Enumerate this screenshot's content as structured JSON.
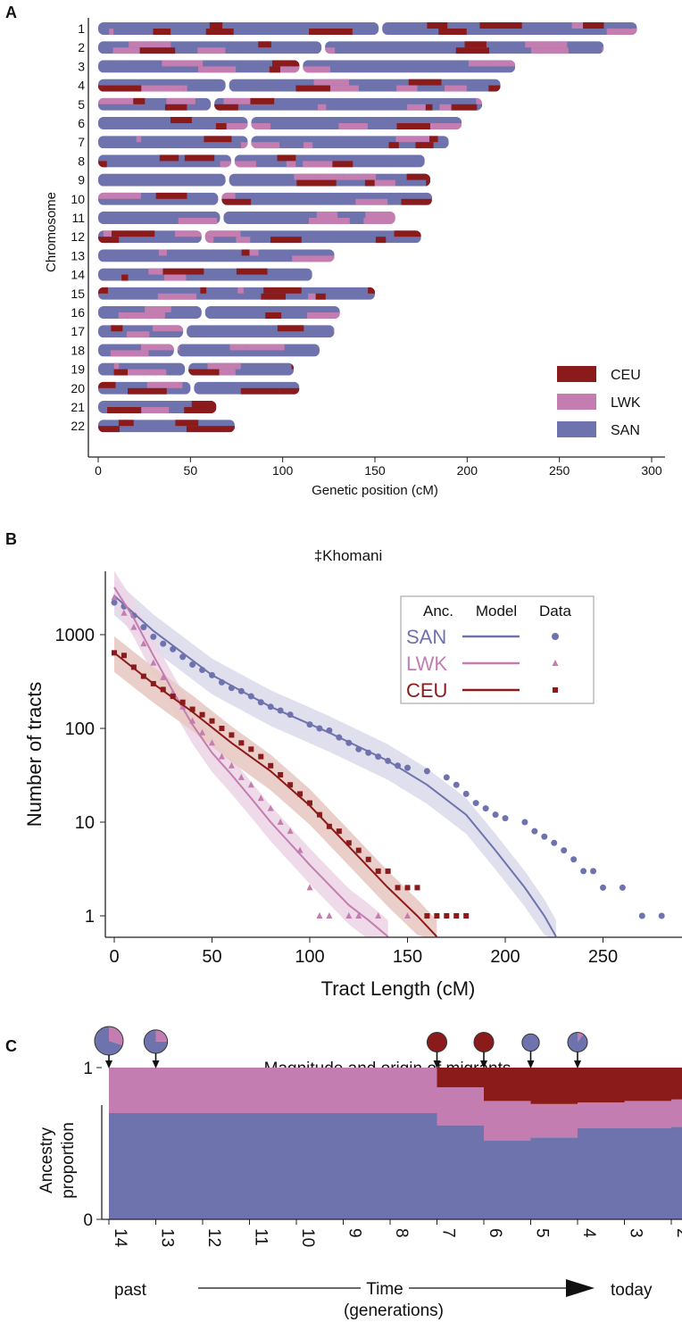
{
  "colors": {
    "CEU": "#8b1a1a",
    "LWK": "#c47db0",
    "SAN": "#6e73ad",
    "SAN_light": "#dcdcec",
    "LWK_light": "#ecd6e6",
    "CEU_light": "#e8c9c4"
  },
  "panels": {
    "A": "A",
    "B": "B",
    "C": "C"
  },
  "chart_data": [
    {
      "type": "chromosome-painting",
      "ylabel": "Chromosome",
      "xlabel": "Genetic position (cM)",
      "xlim": [
        0,
        300
      ],
      "xticks": [
        "0",
        "50",
        "100",
        "150",
        "200",
        "250",
        "300"
      ],
      "legend_position": "bottom-right",
      "legend": [
        {
          "name": "CEU",
          "color": "#8b1a1a"
        },
        {
          "name": "LWK",
          "color": "#c47db0"
        },
        {
          "name": "SAN",
          "color": "#6e73ad"
        }
      ],
      "chromosomes": [
        {
          "id": "1",
          "length": 292,
          "centromere": 153
        },
        {
          "id": "2",
          "length": 274,
          "centromere": 122
        },
        {
          "id": "3",
          "length": 226,
          "centromere": 110
        },
        {
          "id": "4",
          "length": 218,
          "centromere": 70
        },
        {
          "id": "5",
          "length": 208,
          "centromere": 62
        },
        {
          "id": "6",
          "length": 197,
          "centromere": 82
        },
        {
          "id": "7",
          "length": 190,
          "centromere": 82
        },
        {
          "id": "8",
          "length": 177,
          "centromere": 73
        },
        {
          "id": "9",
          "length": 180,
          "centromere": 70
        },
        {
          "id": "10",
          "length": 181,
          "centromere": 66
        },
        {
          "id": "11",
          "length": 161,
          "centromere": 67
        },
        {
          "id": "12",
          "length": 175,
          "centromere": 57
        },
        {
          "id": "13",
          "length": 128,
          "centromere": 0
        },
        {
          "id": "14",
          "length": 116,
          "centromere": 0
        },
        {
          "id": "15",
          "length": 150,
          "centromere": 0
        },
        {
          "id": "16",
          "length": 131,
          "centromere": 57
        },
        {
          "id": "17",
          "length": 128,
          "centromere": 47
        },
        {
          "id": "18",
          "length": 120,
          "centromere": 42
        },
        {
          "id": "19",
          "length": 106,
          "centromere": 48
        },
        {
          "id": "20",
          "length": 109,
          "centromere": 51
        },
        {
          "id": "21",
          "length": 64,
          "centromere": 0
        },
        {
          "id": "22",
          "length": 74,
          "centromere": 0
        }
      ]
    },
    {
      "type": "scatter",
      "title": "‡Khomani",
      "xlabel": "Tract Length (cM)",
      "ylabel": "Number of tracts",
      "xlim": [
        -5,
        285
      ],
      "ylim": [
        0.6,
        3200
      ],
      "yscale": "log",
      "xticks": [
        "0",
        "50",
        "100",
        "150",
        "200",
        "250"
      ],
      "yticks": [
        "1",
        "10",
        "100",
        "1000"
      ],
      "legend_position": "top-right",
      "legend_header": {
        "anc": "Anc.",
        "model": "Model",
        "data": "Data"
      },
      "series": [
        {
          "name": "SAN",
          "marker": "circle",
          "color": "#6e73ad",
          "data": [
            [
              0,
              2200
            ],
            [
              5,
              2000
            ],
            [
              10,
              1600
            ],
            [
              15,
              1200
            ],
            [
              20,
              950
            ],
            [
              25,
              800
            ],
            [
              30,
              700
            ],
            [
              35,
              580
            ],
            [
              40,
              480
            ],
            [
              45,
              420
            ],
            [
              50,
              370
            ],
            [
              55,
              310
            ],
            [
              60,
              270
            ],
            [
              65,
              250
            ],
            [
              70,
              220
            ],
            [
              75,
              190
            ],
            [
              80,
              170
            ],
            [
              85,
              155
            ],
            [
              90,
              140
            ],
            [
              100,
              110
            ],
            [
              105,
              100
            ],
            [
              110,
              95
            ],
            [
              115,
              80
            ],
            [
              120,
              70
            ],
            [
              125,
              60
            ],
            [
              130,
              55
            ],
            [
              135,
              50
            ],
            [
              140,
              45
            ],
            [
              145,
              40
            ],
            [
              150,
              38
            ],
            [
              160,
              35
            ],
            [
              170,
              30
            ],
            [
              175,
              25
            ],
            [
              180,
              20
            ],
            [
              185,
              16
            ],
            [
              190,
              14
            ],
            [
              195,
              12
            ],
            [
              200,
              11
            ],
            [
              210,
              10
            ],
            [
              215,
              8
            ],
            [
              220,
              7
            ],
            [
              225,
              6
            ],
            [
              230,
              5
            ],
            [
              235,
              4
            ],
            [
              240,
              3
            ],
            [
              245,
              3
            ],
            [
              250,
              2
            ],
            [
              260,
              2
            ],
            [
              270,
              1
            ],
            [
              280,
              1
            ]
          ],
          "model": [
            [
              0,
              2600
            ],
            [
              20,
              1100
            ],
            [
              50,
              370
            ],
            [
              80,
              170
            ],
            [
              110,
              90
            ],
            [
              140,
              45
            ],
            [
              160,
              25
            ],
            [
              180,
              12
            ],
            [
              195,
              5
            ],
            [
              210,
              2
            ],
            [
              220,
              1
            ],
            [
              226,
              0.6
            ]
          ]
        },
        {
          "name": "LWK",
          "marker": "triangle",
          "color": "#c47db0",
          "data": [
            [
              0,
              2500
            ],
            [
              5,
              1700
            ],
            [
              10,
              1200
            ],
            [
              15,
              800
            ],
            [
              20,
              500
            ],
            [
              25,
              350
            ],
            [
              30,
              240
            ],
            [
              35,
              170
            ],
            [
              40,
              120
            ],
            [
              45,
              90
            ],
            [
              50,
              70
            ],
            [
              55,
              50
            ],
            [
              60,
              40
            ],
            [
              65,
              30
            ],
            [
              70,
              25
            ],
            [
              75,
              18
            ],
            [
              80,
              14
            ],
            [
              85,
              10
            ],
            [
              90,
              8
            ],
            [
              95,
              5
            ],
            [
              100,
              2
            ],
            [
              105,
              1
            ],
            [
              110,
              1
            ],
            [
              120,
              1
            ],
            [
              125,
              1
            ],
            [
              135,
              1
            ],
            [
              150,
              1
            ]
          ],
          "model": [
            [
              0,
              3200
            ],
            [
              10,
              1500
            ],
            [
              20,
              600
            ],
            [
              30,
              250
            ],
            [
              40,
              110
            ],
            [
              50,
              55
            ],
            [
              60,
              32
            ],
            [
              70,
              18
            ],
            [
              80,
              10
            ],
            [
              100,
              3.5
            ],
            [
              120,
              1.3
            ],
            [
              130,
              0.9
            ],
            [
              140,
              0.6
            ]
          ]
        },
        {
          "name": "CEU",
          "marker": "square",
          "color": "#8b1a1a",
          "data": [
            [
              0,
              640
            ],
            [
              5,
              600
            ],
            [
              10,
              450
            ],
            [
              15,
              360
            ],
            [
              20,
              300
            ],
            [
              25,
              260
            ],
            [
              30,
              220
            ],
            [
              35,
              190
            ],
            [
              40,
              160
            ],
            [
              45,
              140
            ],
            [
              50,
              120
            ],
            [
              55,
              100
            ],
            [
              60,
              85
            ],
            [
              65,
              70
            ],
            [
              70,
              60
            ],
            [
              75,
              50
            ],
            [
              80,
              40
            ],
            [
              85,
              32
            ],
            [
              90,
              25
            ],
            [
              95,
              20
            ],
            [
              100,
              16
            ],
            [
              105,
              12
            ],
            [
              110,
              9
            ],
            [
              115,
              8
            ],
            [
              120,
              6
            ],
            [
              125,
              5
            ],
            [
              130,
              4
            ],
            [
              135,
              3
            ],
            [
              140,
              3
            ],
            [
              145,
              2
            ],
            [
              150,
              2
            ],
            [
              155,
              2
            ],
            [
              160,
              1
            ],
            [
              165,
              1
            ],
            [
              170,
              1
            ],
            [
              175,
              1
            ],
            [
              180,
              1
            ]
          ],
          "model": [
            [
              0,
              640
            ],
            [
              20,
              300
            ],
            [
              40,
              150
            ],
            [
              60,
              70
            ],
            [
              80,
              35
            ],
            [
              100,
              15
            ],
            [
              120,
              5.5
            ],
            [
              140,
              2
            ],
            [
              155,
              1
            ],
            [
              165,
              0.6
            ]
          ]
        }
      ]
    },
    {
      "type": "area",
      "title": "Magnitude and origin of migrants",
      "ylabel": "Ancestry proportion",
      "yticks": [
        "0",
        "1"
      ],
      "x": [
        "14",
        "13",
        "12",
        "11",
        "10",
        "9",
        "8",
        "7",
        "6",
        "5",
        "4",
        "3",
        "2"
      ],
      "time_label": "Time",
      "time_unit": "(generations)",
      "past_label": "past",
      "today_label": "today",
      "stack_order": [
        "SAN",
        "LWK",
        "CEU"
      ],
      "series": [
        {
          "name": "SAN",
          "values": [
            0.7,
            0.7,
            0.7,
            0.7,
            0.7,
            0.7,
            0.7,
            0.62,
            0.52,
            0.54,
            0.6,
            0.6,
            0.61
          ]
        },
        {
          "name": "LWK",
          "values": [
            0.3,
            0.3,
            0.3,
            0.3,
            0.3,
            0.3,
            0.3,
            0.25,
            0.26,
            0.22,
            0.17,
            0.18,
            0.18
          ]
        },
        {
          "name": "CEU",
          "values": [
            0.0,
            0.0,
            0.0,
            0.0,
            0.0,
            0.0,
            0.0,
            0.13,
            0.22,
            0.24,
            0.23,
            0.22,
            0.21
          ]
        }
      ],
      "migrants": [
        {
          "generation": "14",
          "magnitude": 1.0,
          "SAN": 0.7,
          "LWK": 0.3,
          "CEU": 0.0
        },
        {
          "generation": "13",
          "magnitude": 0.55,
          "SAN": 0.75,
          "LWK": 0.25,
          "CEU": 0.0
        },
        {
          "generation": "7",
          "magnitude": 0.3,
          "SAN": 0.0,
          "LWK": 0.0,
          "CEU": 1.0
        },
        {
          "generation": "6",
          "magnitude": 0.3,
          "SAN": 0.0,
          "LWK": 0.0,
          "CEU": 1.0
        },
        {
          "generation": "5",
          "magnitude": 0.18,
          "SAN": 1.0,
          "LWK": 0.0,
          "CEU": 0.0
        },
        {
          "generation": "4",
          "magnitude": 0.3,
          "SAN": 0.9,
          "LWK": 0.1,
          "CEU": 0.0
        }
      ]
    }
  ]
}
